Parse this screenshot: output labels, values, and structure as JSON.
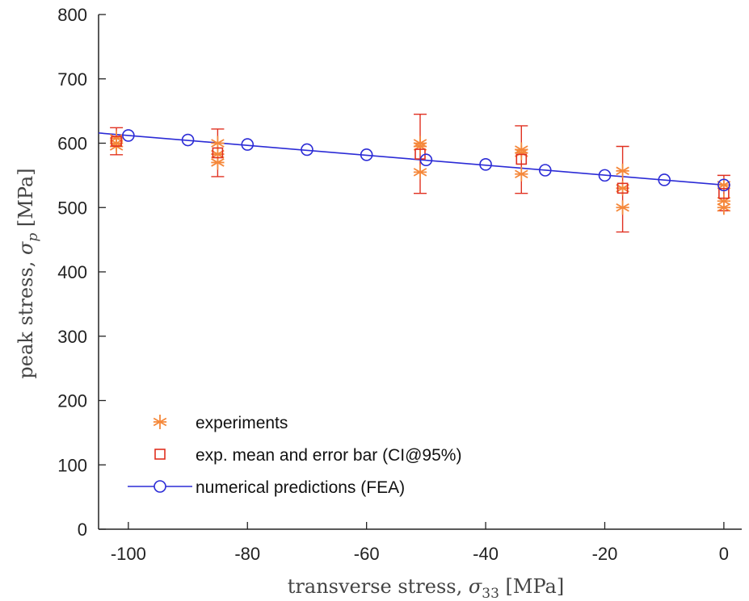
{
  "chart_data": {
    "type": "scatter",
    "xlabel_text": "transverse stress, ",
    "xlabel_symbol": "σ",
    "xlabel_sub": "33",
    "xlabel_unit": " [MPa]",
    "ylabel_text": "peak stress, ",
    "ylabel_symbol": "σ",
    "ylabel_sub": "p",
    "ylabel_unit": " [MPa]",
    "xlim": [
      -105,
      3
    ],
    "ylim": [
      0,
      800
    ],
    "xticks": [
      -100,
      -80,
      -60,
      -40,
      -20,
      0
    ],
    "yticks": [
      0,
      100,
      200,
      300,
      400,
      500,
      600,
      700,
      800
    ],
    "grid": false,
    "legend_position": "bottom-left",
    "colors": {
      "experiments": "#f5883a",
      "mean": "#e03020",
      "fea": "#2b2bd6"
    },
    "series": [
      {
        "name": "experiments",
        "marker": "asterisk",
        "points": [
          [
            -102,
            608
          ],
          [
            -102,
            600
          ],
          [
            -102,
            595
          ],
          [
            -85,
            600
          ],
          [
            -85,
            583
          ],
          [
            -85,
            570
          ],
          [
            -51,
            600
          ],
          [
            -51,
            595
          ],
          [
            -51,
            555
          ],
          [
            -34,
            590
          ],
          [
            -34,
            585
          ],
          [
            -34,
            552
          ],
          [
            -17,
            557
          ],
          [
            -17,
            530
          ],
          [
            -17,
            500
          ],
          [
            0,
            535
          ],
          [
            0,
            510
          ],
          [
            0,
            500
          ]
        ]
      },
      {
        "name": "exp. mean and error bar (CI@95%)",
        "marker": "square",
        "points": [
          {
            "x": -102,
            "y": 603,
            "lo": 582,
            "hi": 624
          },
          {
            "x": -85,
            "y": 585,
            "lo": 548,
            "hi": 622
          },
          {
            "x": -51,
            "y": 583,
            "lo": 522,
            "hi": 645
          },
          {
            "x": -34,
            "y": 575,
            "lo": 522,
            "hi": 627
          },
          {
            "x": -17,
            "y": 530,
            "lo": 462,
            "hi": 595
          },
          {
            "x": 0,
            "y": 522,
            "lo": 495,
            "hi": 550
          }
        ]
      },
      {
        "name": "numerical predictions (FEA)",
        "marker": "circle",
        "line": true,
        "line_extent": [
          -105,
          0
        ],
        "points": [
          [
            -100,
            612
          ],
          [
            -90,
            605
          ],
          [
            -80,
            598
          ],
          [
            -70,
            590
          ],
          [
            -60,
            582
          ],
          [
            -50,
            574
          ],
          [
            -40,
            567
          ],
          [
            -30,
            558
          ],
          [
            -20,
            550
          ],
          [
            -10,
            543
          ],
          [
            0,
            535
          ]
        ]
      }
    ]
  }
}
